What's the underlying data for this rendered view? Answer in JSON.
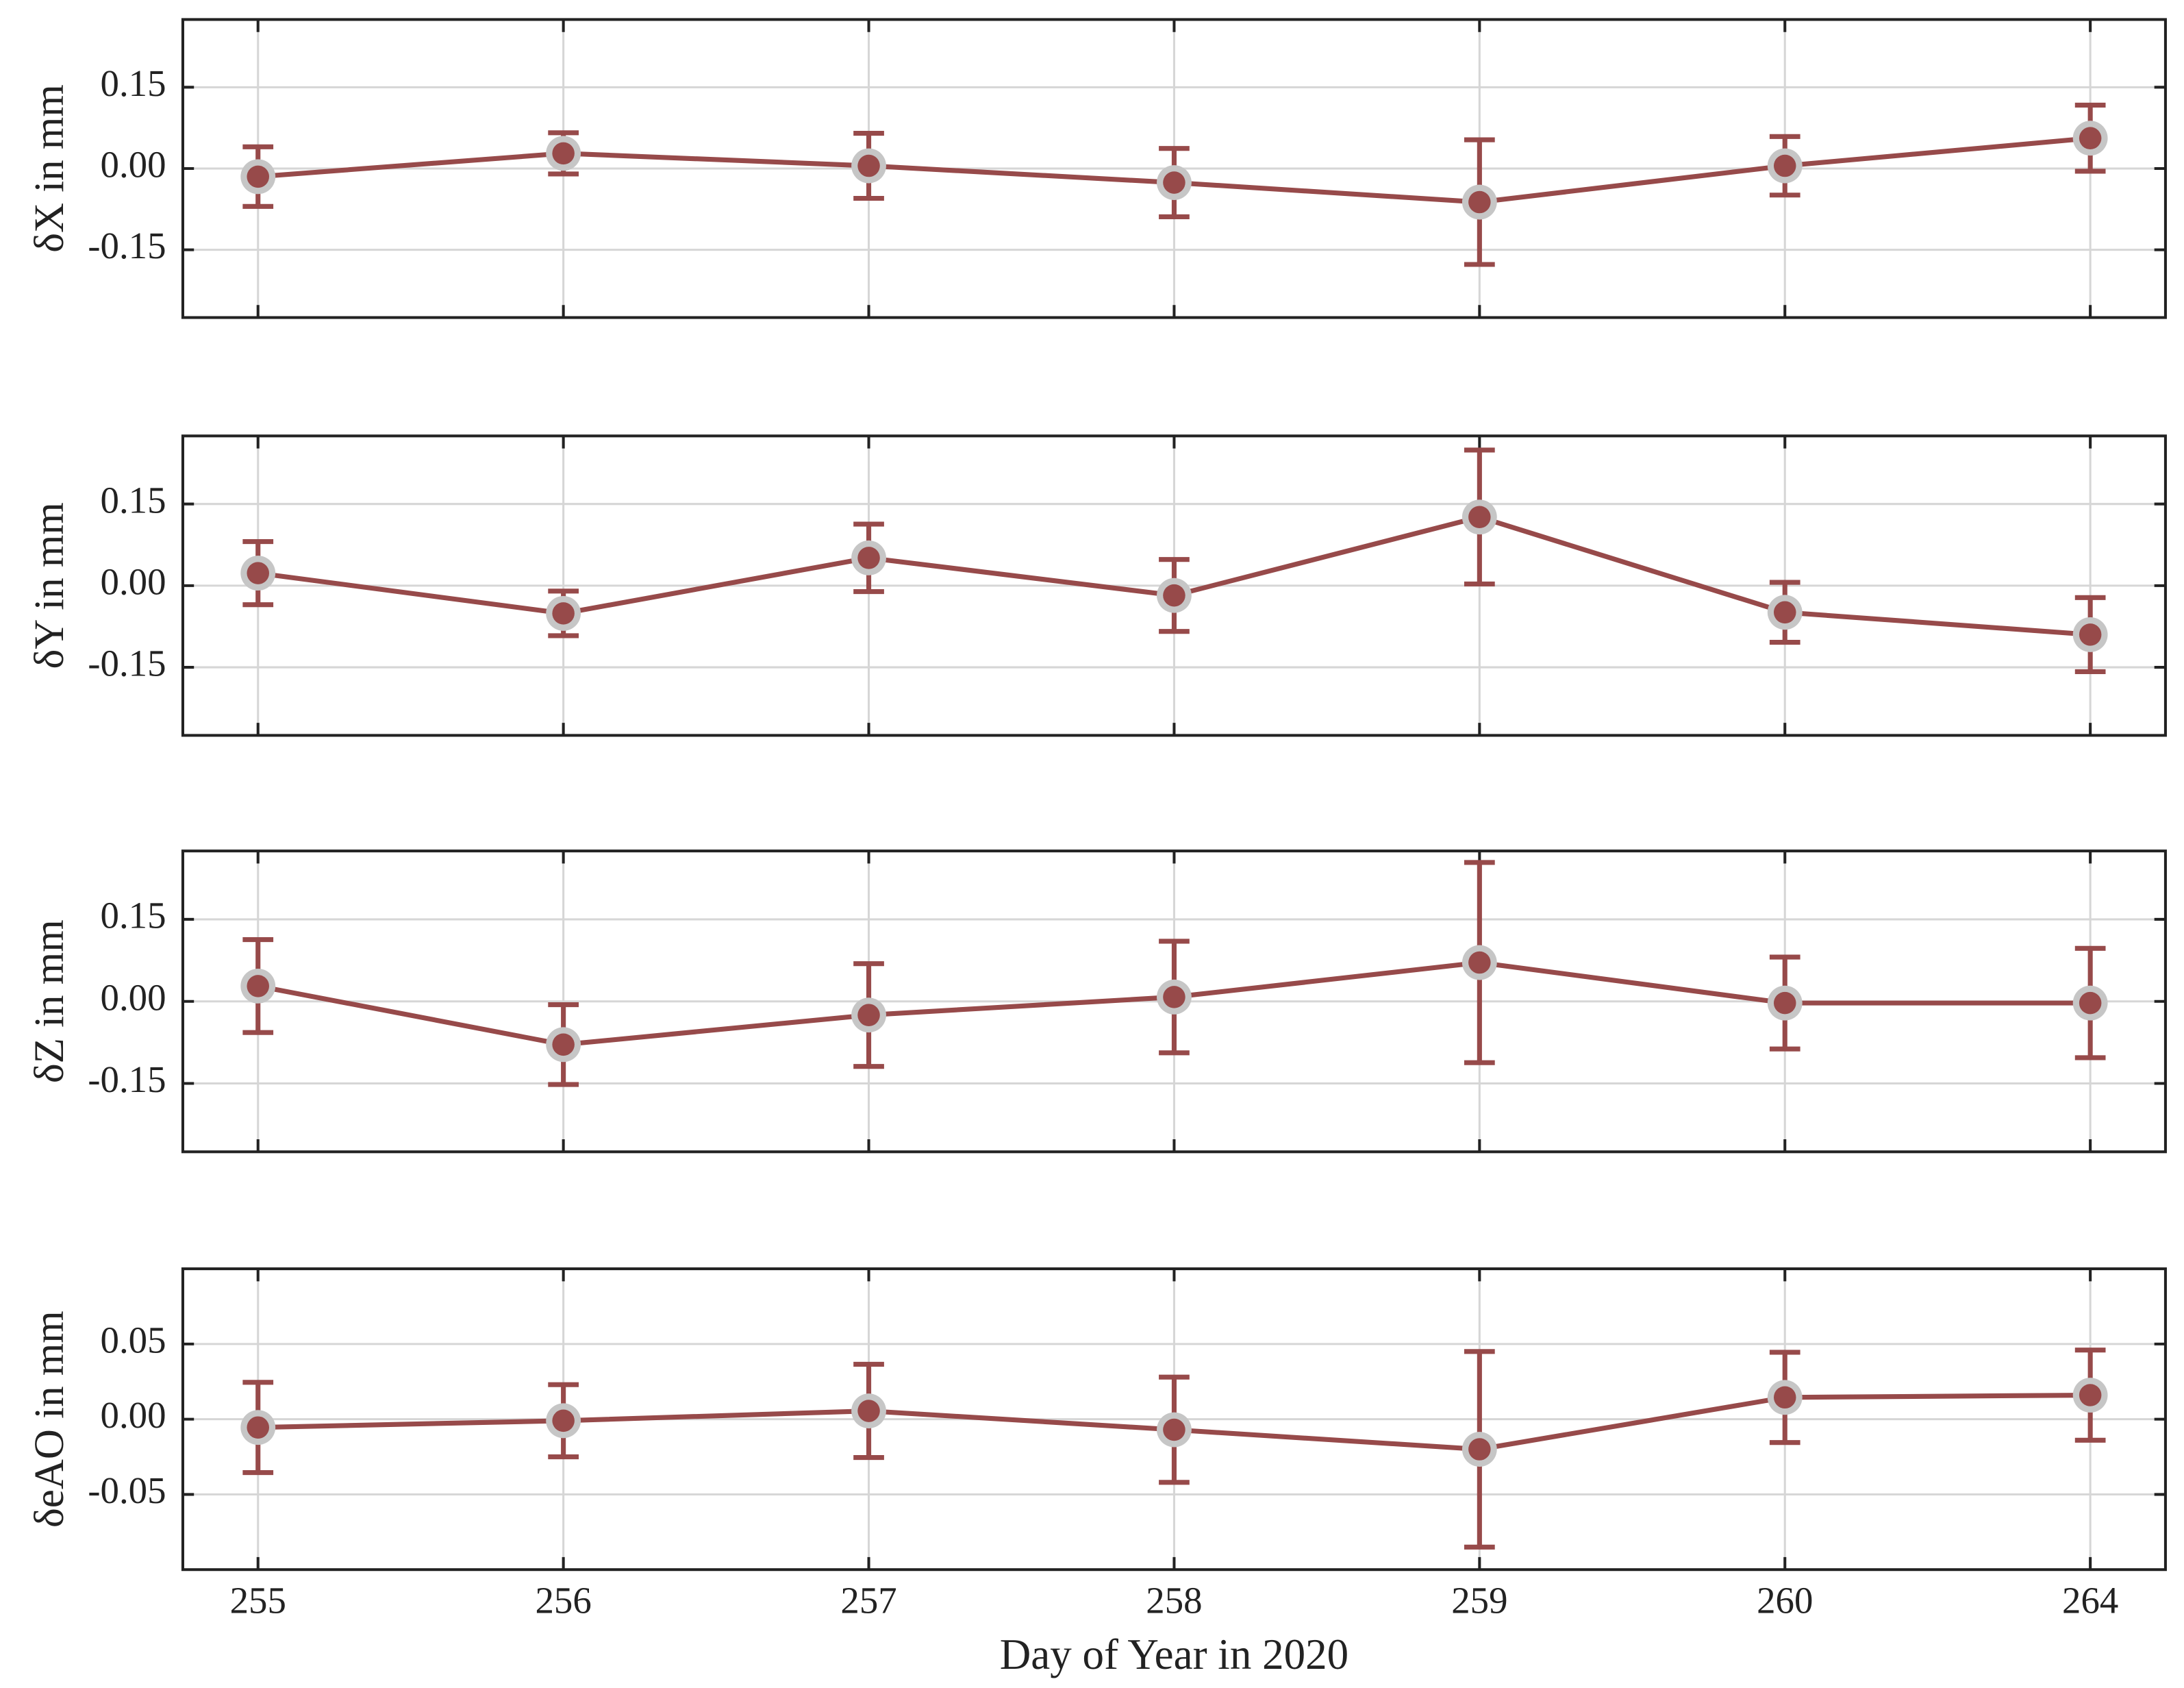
{
  "chart_data": [
    {
      "type": "line",
      "ylabel": "δX in mm",
      "color": "#974a4a",
      "values": [
        -0.015,
        0.028,
        0.005,
        -0.026,
        -0.062,
        0.005,
        0.056
      ],
      "errors": [
        0.055,
        0.038,
        0.06,
        0.063,
        0.115,
        0.054,
        0.061
      ],
      "ylim": [
        -0.275,
        0.275
      ],
      "yticks": [
        0.15,
        {
          "value": 0,
          "label": "0.00"
        },
        -0.15
      ],
      "grid": true
    },
    {
      "type": "line",
      "ylabel": "δY in mm",
      "color": "#974a4a",
      "values": [
        0.023,
        -0.051,
        0.051,
        -0.018,
        0.126,
        -0.049,
        -0.09
      ],
      "errors": [
        0.058,
        0.041,
        0.062,
        0.066,
        0.123,
        0.055,
        0.068
      ],
      "ylim": [
        -0.275,
        0.275
      ],
      "yticks": [
        0.15,
        {
          "value": 0,
          "label": "0.00"
        },
        -0.15
      ],
      "grid": true
    },
    {
      "type": "line",
      "ylabel": "δZ in mm",
      "color": "#974a4a",
      "values": [
        0.028,
        -0.079,
        -0.025,
        0.008,
        0.071,
        -0.003,
        -0.003
      ],
      "errors": [
        0.085,
        0.073,
        0.094,
        0.102,
        0.183,
        0.084,
        0.1
      ],
      "ylim": [
        -0.275,
        0.275
      ],
      "yticks": [
        0.15,
        {
          "value": 0,
          "label": "0.00"
        },
        -0.15
      ],
      "grid": true
    },
    {
      "type": "line",
      "ylabel": "δeAO in mm",
      "color": "#974a4a",
      "xlabel": "Day of Year in 2020",
      "categories": [
        "255",
        "256",
        "257",
        "258",
        "259",
        "260",
        "264"
      ],
      "values": [
        -0.0055,
        -0.001,
        0.0055,
        -0.007,
        -0.02,
        0.0145,
        0.016
      ],
      "errors": [
        0.03,
        0.024,
        0.031,
        0.035,
        0.065,
        0.03,
        0.03
      ],
      "ylim": [
        -0.1,
        0.1
      ],
      "yticks": [
        0.05,
        {
          "value": 0,
          "label": "0.00"
        },
        -0.05
      ],
      "grid": true
    }
  ]
}
